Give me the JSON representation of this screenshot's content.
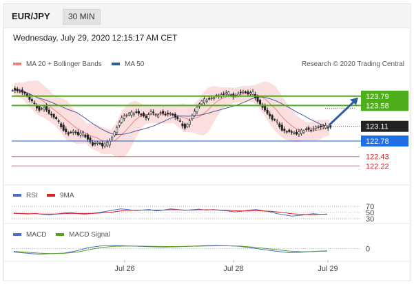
{
  "header": {
    "pair": "EUR/JPY",
    "timeframe": "30 MIN",
    "datetime": "Wednesday, July 29, 2020 12:15:17 AM CET"
  },
  "legend": {
    "ma20": "MA 20 + Bollinger Bands",
    "ma50": "MA 50",
    "rsi": "RSI",
    "rsi9": "9MA",
    "macd": "MACD",
    "macd_signal": "MACD Signal",
    "copyright": "Research © 2020 Trading Central"
  },
  "colors": {
    "candle": "#222222",
    "bollinger": "#f9d0d0",
    "ma20": "#f08080",
    "ma50": "#4a5a99",
    "resistance": "#4caf1a",
    "support": "#1e6ee6",
    "target": "#e06060",
    "arrow": "#2d5f9f",
    "rsi": "#4a6ccd",
    "rsi9": "#e02020",
    "macd": "#4a6ccd",
    "macd_signal": "#55a020"
  },
  "chart_data": [
    {
      "type": "candlestick",
      "ylim": [
        121.9,
        124.25
      ],
      "x_ticks": [
        "Jul 26",
        "Jul 28",
        "Jul 29"
      ],
      "close_series": [
        123.95,
        123.9,
        123.85,
        123.7,
        123.6,
        123.5,
        123.55,
        123.4,
        123.3,
        123.2,
        123.05,
        122.95,
        123.0,
        122.9,
        122.95,
        122.85,
        122.7,
        122.75,
        122.65,
        122.72,
        122.9,
        123.1,
        123.3,
        123.35,
        123.4,
        123.45,
        123.38,
        123.3,
        123.42,
        123.35,
        123.45,
        123.38,
        123.4,
        123.3,
        123.2,
        123.1,
        123.25,
        123.45,
        123.6,
        123.7,
        123.75,
        123.78,
        123.8,
        123.82,
        123.85,
        123.8,
        123.85,
        123.9,
        123.82,
        123.86,
        123.7,
        123.55,
        123.4,
        123.25,
        123.2,
        123.05,
        123.0,
        122.98,
        122.92,
        123.0,
        123.08,
        123.02,
        123.1,
        123.08,
        123.1,
        123.12
      ],
      "levels": [
        {
          "value": 123.79,
          "label": "123.79",
          "kind": "resistance"
        },
        {
          "value": 123.58,
          "label": "123.58",
          "kind": "resistance"
        },
        {
          "value": 123.11,
          "label": "123.11",
          "kind": "last"
        },
        {
          "value": 122.78,
          "label": "122.78",
          "kind": "support"
        },
        {
          "value": 122.43,
          "label": "122.43",
          "kind": "target"
        },
        {
          "value": 122.22,
          "label": "122.22",
          "kind": "target"
        }
      ],
      "arrow": {
        "from": 123.11,
        "to": 123.79,
        "direction": "up"
      }
    },
    {
      "type": "line",
      "name": "RSI",
      "ylim": [
        25,
        75
      ],
      "ticks": [
        "70",
        "50",
        "30"
      ],
      "series": [
        {
          "name": "RSI",
          "values": [
            48,
            46,
            45,
            47,
            44,
            42,
            45,
            48,
            50,
            46,
            44,
            47,
            50,
            54,
            58,
            62,
            60,
            56,
            58,
            60,
            55,
            58,
            62,
            60,
            57,
            59,
            61,
            58,
            60,
            57,
            55,
            52,
            54,
            58,
            60,
            56,
            52,
            46,
            42,
            38,
            40,
            43,
            46,
            44,
            45
          ]
        },
        {
          "name": "9MA",
          "values": [
            47,
            47,
            46,
            46,
            45,
            45,
            45,
            46,
            47,
            47,
            47,
            47,
            48,
            50,
            52,
            55,
            57,
            57,
            58,
            58,
            58,
            58,
            59,
            59,
            58,
            58,
            59,
            59,
            59,
            58,
            57,
            56,
            55,
            55,
            56,
            55,
            54,
            52,
            49,
            46,
            44,
            43,
            43,
            44,
            44
          ]
        }
      ]
    },
    {
      "type": "line",
      "name": "MACD",
      "ylim": [
        -0.5,
        0.5
      ],
      "ticks": [
        "0"
      ],
      "series": [
        {
          "name": "MACD",
          "values": [
            -0.15,
            -0.2,
            -0.25,
            -0.22,
            -0.2,
            -0.1,
            0.05,
            0.12,
            0.14,
            0.12,
            0.1,
            0.08,
            0.07,
            0.08,
            0.1,
            0.13,
            0.14,
            0.13,
            0.1,
            0.03,
            -0.05,
            -0.12,
            -0.18,
            -0.16,
            -0.12,
            -0.1
          ]
        },
        {
          "name": "MACD Signal",
          "values": [
            -0.12,
            -0.16,
            -0.2,
            -0.22,
            -0.21,
            -0.16,
            -0.05,
            0.05,
            0.1,
            0.11,
            0.11,
            0.1,
            0.09,
            0.09,
            0.1,
            0.11,
            0.12,
            0.12,
            0.11,
            0.07,
            0.01,
            -0.05,
            -0.11,
            -0.14,
            -0.13,
            -0.11
          ]
        }
      ]
    }
  ]
}
